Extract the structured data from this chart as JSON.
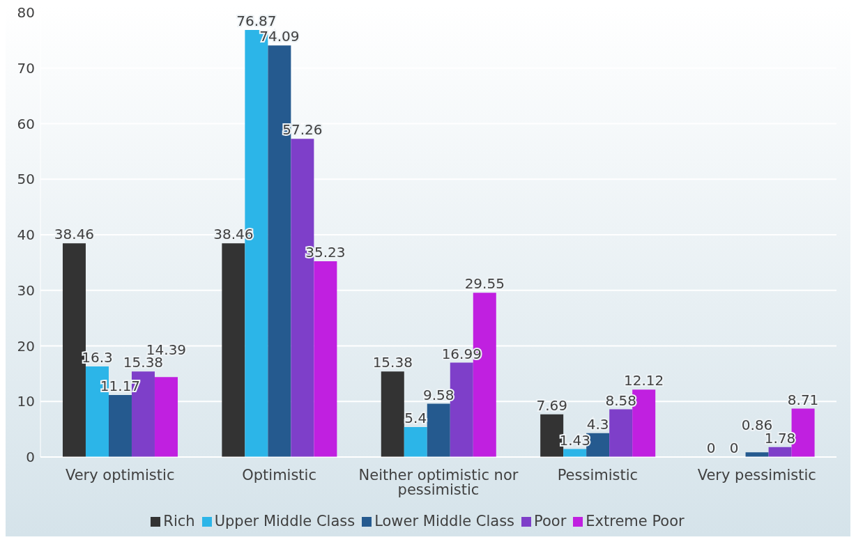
{
  "chart_data": {
    "type": "bar",
    "categories": [
      "Very optimistic",
      "Optimistic",
      "Neither optimistic nor pessimistic",
      "Pessimistic",
      "Very pessimistic"
    ],
    "series": [
      {
        "name": "Rich",
        "color": "#333333",
        "values": [
          38.46,
          38.46,
          15.38,
          7.69,
          0
        ]
      },
      {
        "name": "Upper Middle Class",
        "color": "#2cb5e8",
        "values": [
          16.3,
          76.87,
          5.4,
          1.43,
          0
        ]
      },
      {
        "name": "Lower Middle Class",
        "color": "#255a8f",
        "values": [
          11.17,
          74.09,
          9.58,
          4.3,
          0.86
        ]
      },
      {
        "name": "Poor",
        "color": "#7e3fc9",
        "values": [
          15.38,
          57.26,
          16.99,
          8.58,
          1.78
        ]
      },
      {
        "name": "Extreme Poor",
        "color": "#c020e0",
        "values": [
          14.39,
          35.23,
          29.55,
          12.12,
          8.71
        ]
      }
    ],
    "ylim": [
      0,
      80
    ],
    "yticks": [
      0,
      10,
      20,
      30,
      40,
      50,
      60,
      70,
      80
    ],
    "grid": "y",
    "legend": "bottom",
    "data_labels": true
  }
}
